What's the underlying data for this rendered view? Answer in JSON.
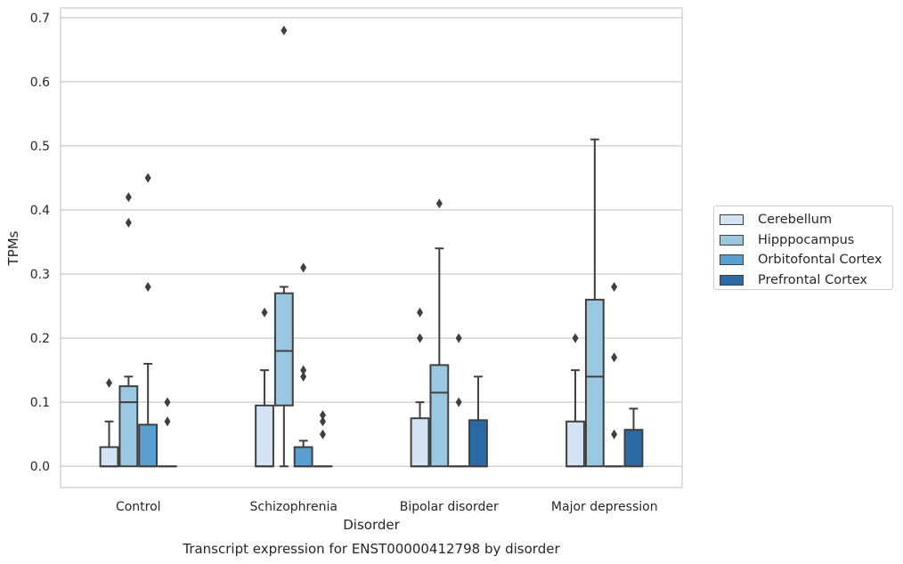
{
  "chart_data": {
    "type": "box",
    "title": "Transcript expression for ENST00000412798 by disorder",
    "xlabel": "Disorder",
    "ylabel": "TPMs",
    "ylim": [
      -0.033,
      0.715
    ],
    "yticks": [
      "0.0",
      "0.1",
      "0.2",
      "0.3",
      "0.4",
      "0.5",
      "0.6",
      "0.7"
    ],
    "grid": "horizontal",
    "legend_position": "right",
    "categories": [
      "Control",
      "Schizophrenia",
      "Bipolar disorder",
      "Major depression"
    ],
    "series": [
      {
        "name": "Cerebellum",
        "color": "#d3e3f3",
        "boxes": [
          {
            "q1": 0.0,
            "median": 0.0,
            "q3": 0.03,
            "whisker_low": 0.0,
            "whisker_high": 0.07,
            "outliers": [
              0.13
            ]
          },
          {
            "q1": 0.0,
            "median": 0.0,
            "q3": 0.095,
            "whisker_low": 0.0,
            "whisker_high": 0.15,
            "outliers": [
              0.24
            ]
          },
          {
            "q1": 0.0,
            "median": 0.0,
            "q3": 0.075,
            "whisker_low": 0.0,
            "whisker_high": 0.1,
            "outliers": [
              0.2,
              0.24
            ]
          },
          {
            "q1": 0.0,
            "median": 0.0,
            "q3": 0.07,
            "whisker_low": 0.0,
            "whisker_high": 0.15,
            "outliers": [
              0.2
            ]
          }
        ]
      },
      {
        "name": "Hipppocampus",
        "color": "#9ac8e0",
        "boxes": [
          {
            "q1": 0.0,
            "median": 0.1,
            "q3": 0.125,
            "whisker_low": 0.0,
            "whisker_high": 0.14,
            "outliers": [
              0.38,
              0.42
            ]
          },
          {
            "q1": 0.095,
            "median": 0.18,
            "q3": 0.27,
            "whisker_low": 0.0,
            "whisker_high": 0.28,
            "outliers": [
              0.68
            ]
          },
          {
            "q1": 0.0,
            "median": 0.115,
            "q3": 0.158,
            "whisker_low": 0.0,
            "whisker_high": 0.34,
            "outliers": [
              0.41
            ]
          },
          {
            "q1": 0.0,
            "median": 0.14,
            "q3": 0.26,
            "whisker_low": 0.0,
            "whisker_high": 0.51,
            "outliers": []
          }
        ]
      },
      {
        "name": "Orbitofontal Cortex",
        "color": "#5a9fcf",
        "boxes": [
          {
            "q1": 0.0,
            "median": 0.0,
            "q3": 0.065,
            "whisker_low": 0.0,
            "whisker_high": 0.16,
            "outliers": [
              0.28,
              0.45
            ]
          },
          {
            "q1": 0.0,
            "median": 0.0,
            "q3": 0.03,
            "whisker_low": 0.0,
            "whisker_high": 0.04,
            "outliers": [
              0.14,
              0.15,
              0.31
            ]
          },
          {
            "q1": 0.0,
            "median": 0.0,
            "q3": 0.0,
            "whisker_low": 0.0,
            "whisker_high": 0.0,
            "outliers": [
              0.1,
              0.2
            ]
          },
          {
            "q1": 0.0,
            "median": 0.0,
            "q3": 0.0,
            "whisker_low": 0.0,
            "whisker_high": 0.0,
            "outliers": [
              0.05,
              0.17,
              0.28
            ]
          }
        ]
      },
      {
        "name": "Prefrontal Cortex",
        "color": "#2b6aa6",
        "boxes": [
          {
            "q1": 0.0,
            "median": 0.0,
            "q3": 0.0,
            "whisker_low": 0.0,
            "whisker_high": 0.0,
            "outliers": [
              0.07,
              0.1
            ]
          },
          {
            "q1": 0.0,
            "median": 0.0,
            "q3": 0.0,
            "whisker_low": 0.0,
            "whisker_high": 0.0,
            "outliers": [
              0.05,
              0.07,
              0.08
            ]
          },
          {
            "q1": 0.0,
            "median": 0.0,
            "q3": 0.072,
            "whisker_low": 0.0,
            "whisker_high": 0.14,
            "outliers": []
          },
          {
            "q1": 0.0,
            "median": 0.0,
            "q3": 0.057,
            "whisker_low": 0.0,
            "whisker_high": 0.09,
            "outliers": []
          }
        ]
      }
    ]
  }
}
